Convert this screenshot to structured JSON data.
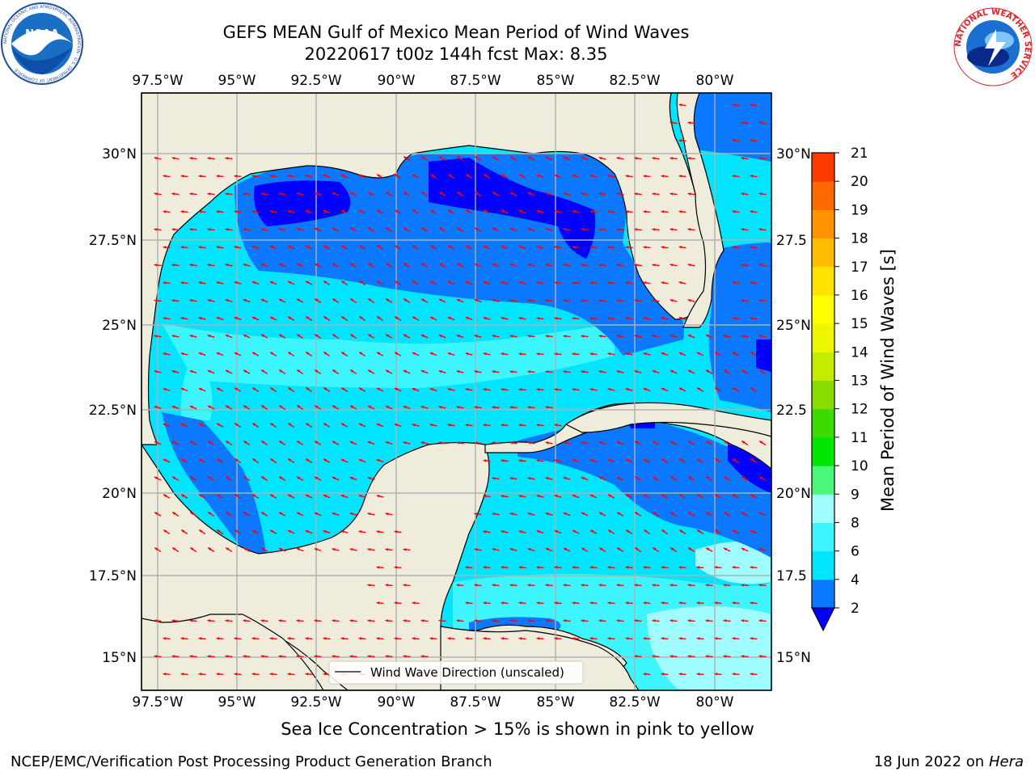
{
  "title_line1": "GEFS MEAN Gulf of Mexico Mean Period of Wind Waves",
  "title_line2": "20220617 t00z 144h fcst   Max: 8.35",
  "caption": "Sea Ice Concentration > 15% is shown in pink to yellow",
  "footer_left": "NCEP/EMC/Verification Post Processing Product Generation Branch",
  "footer_date": "18 Jun 2022 on",
  "footer_machine": "Hera",
  "legend_label": "Wind Wave Direction (unscaled)",
  "colorbar": {
    "label": "Mean Period of Wind Waves [s]",
    "ticks": [
      "2",
      "4",
      "6",
      "8",
      "9",
      "10",
      "11",
      "12",
      "13",
      "14",
      "15",
      "16",
      "17",
      "18",
      "19",
      "20",
      "21"
    ],
    "colors": [
      "#0a78ff",
      "#00e5ff",
      "#3cf5ff",
      "#9ffdff",
      "#4bf779",
      "#00e600",
      "#3ddc00",
      "#8adb00",
      "#c4ec00",
      "#ecf700",
      "#ffff00",
      "#ffe300",
      "#ffbd00",
      "#ff9400",
      "#ff6a00",
      "#ff3a00",
      "#ff0000"
    ],
    "under_color": "#0000ff"
  },
  "axes": {
    "lon_labels": [
      "97.5°W",
      "95°W",
      "92.5°W",
      "90°W",
      "87.5°W",
      "85°W",
      "82.5°W",
      "80°W"
    ],
    "lat_labels": [
      "30°N",
      "27.5°N",
      "25°N",
      "22.5°N",
      "20°N",
      "17.5°N",
      "15°N"
    ],
    "lat_labels_right": [
      "30°N",
      "27.5",
      "25°N",
      "22.5",
      "20°N",
      "17.5",
      "15°N"
    ]
  },
  "map_colors": {
    "land": "#efecdc",
    "wave_2_4": "#0a78ff",
    "wave_4_6": "#00e5ff",
    "wave_6_8": "#3cf5ff",
    "wave_8_9": "#9ffdff",
    "wave_under2": "#0000ff",
    "arrow": "#ff0000"
  },
  "logos": {
    "noaa": "NOAA",
    "noaa_ring": "NATIONAL OCEANIC AND ATMOSPHERIC ADMINISTRATION · U.S. DEPARTMENT OF COMMERCE",
    "nws_ring": "NATIONAL WEATHER SERVICE"
  }
}
